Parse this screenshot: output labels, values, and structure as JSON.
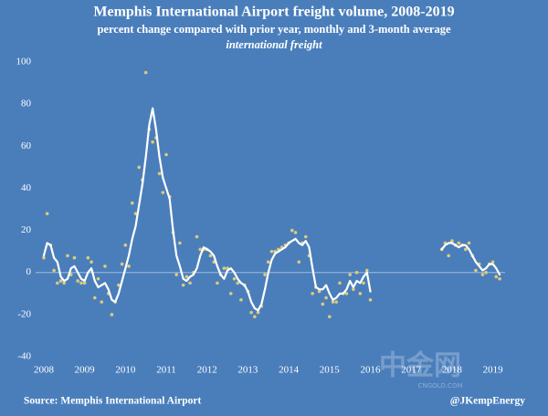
{
  "chart_data": {
    "type": "line",
    "title": "Memphis International Airport freight volume, 2008-2019",
    "subtitle": "percent change compared with prior year, monthly and 3-month average",
    "note": "international freight",
    "source": "Source: Memphis International Airport",
    "credit": "@JKempEnergy",
    "watermark": "中金网",
    "watermark_sub": "CNGOLD.COM",
    "xlim": [
      2007.8,
      2019.3
    ],
    "xticks": [
      2008,
      2009,
      2010,
      2011,
      2012,
      2013,
      2014,
      2015,
      2016,
      2017,
      2018,
      2019
    ],
    "ylim": [
      -40,
      100
    ],
    "yticks": [
      -40,
      -20,
      0,
      20,
      40,
      60,
      80,
      100
    ],
    "zero_line": true,
    "x": [
      2008,
      2008.083,
      2008.167,
      2008.25,
      2008.333,
      2008.417,
      2008.5,
      2008.583,
      2008.667,
      2008.75,
      2008.833,
      2008.917,
      2009,
      2009.083,
      2009.167,
      2009.25,
      2009.333,
      2009.417,
      2009.5,
      2009.583,
      2009.667,
      2009.75,
      2009.833,
      2009.917,
      2010,
      2010.083,
      2010.167,
      2010.25,
      2010.333,
      2010.417,
      2010.5,
      2010.583,
      2010.667,
      2010.75,
      2010.833,
      2010.917,
      2011,
      2011.083,
      2011.167,
      2011.25,
      2011.333,
      2011.417,
      2011.5,
      2011.583,
      2011.667,
      2011.75,
      2011.833,
      2011.917,
      2012,
      2012.083,
      2012.167,
      2012.25,
      2012.333,
      2012.417,
      2012.5,
      2012.583,
      2012.667,
      2012.75,
      2012.833,
      2012.917,
      2013,
      2013.083,
      2013.167,
      2013.25,
      2013.333,
      2013.417,
      2013.5,
      2013.583,
      2013.667,
      2013.75,
      2013.833,
      2013.917,
      2014,
      2014.083,
      2014.167,
      2014.25,
      2014.333,
      2014.417,
      2014.5,
      2014.583,
      2014.667,
      2014.75,
      2014.833,
      2014.917,
      2015,
      2015.083,
      2015.167,
      2015.25,
      2015.333,
      2015.417,
      2015.5,
      2015.583,
      2015.667,
      2015.75,
      2015.833,
      2015.917,
      2016,
      2016.083,
      2016.167,
      2016.25,
      2016.333,
      2016.417,
      2016.5,
      2016.583,
      2016.667,
      2016.75,
      2016.833,
      2016.917,
      2017,
      2017.083,
      2017.167,
      2017.25,
      2017.333,
      2017.417,
      2017.5,
      2017.583,
      2017.667,
      2017.75,
      2017.833,
      2017.917,
      2018,
      2018.083,
      2018.167,
      2018.25,
      2018.333,
      2018.417,
      2018.5,
      2018.583,
      2018.667,
      2018.75,
      2018.833,
      2018.917,
      2019,
      2019.083,
      2019.167
    ],
    "series": [
      {
        "style": "points",
        "color": "#dccb7c",
        "values": [
          7,
          28,
          13,
          1,
          -5,
          -4,
          -5,
          8,
          -1,
          7,
          -4,
          -5,
          -5,
          7,
          5,
          -12,
          -3,
          -14,
          3,
          -10,
          -20,
          -14,
          -6,
          4,
          13,
          3,
          33,
          28,
          50,
          44,
          95,
          68,
          62,
          64,
          47,
          38,
          56,
          36,
          19,
          -1,
          14,
          -6,
          -2,
          -5,
          0,
          17,
          11,
          11,
          11,
          8,
          5,
          -5,
          -1,
          2,
          2,
          -10,
          -3,
          -5,
          -13,
          -6,
          -9,
          -19,
          -21,
          -19,
          -16,
          -1,
          5,
          10,
          10,
          11,
          12,
          13,
          14,
          20,
          19,
          5,
          14,
          17,
          8,
          -10,
          -7,
          -9,
          -15,
          -12,
          -21,
          -14,
          -14,
          -5,
          -10,
          -10,
          -1,
          -8,
          0,
          -10,
          -5,
          1,
          -13,
          null,
          null,
          null,
          null,
          null,
          null,
          null,
          null,
          null,
          null,
          null,
          null,
          null,
          null,
          null,
          null,
          null,
          null,
          null,
          null,
          11,
          14,
          8,
          15,
          13,
          14,
          13,
          11,
          14,
          8,
          1,
          4,
          -1,
          0,
          4,
          5,
          -2,
          -3
        ]
      },
      {
        "style": "line",
        "color": "#ffffff",
        "values": [
          8,
          14,
          13,
          7,
          5,
          -2,
          -4,
          -3,
          2,
          3,
          0,
          -3,
          -4,
          0,
          2,
          -4,
          -7,
          -6,
          -5,
          -8,
          -13,
          -14,
          -10,
          -4,
          2,
          8,
          16,
          22,
          32,
          42,
          55,
          70,
          78,
          68,
          55,
          45,
          40,
          35,
          20,
          8,
          3,
          -3,
          -4,
          -2,
          -1,
          2,
          8,
          12,
          11,
          10,
          8,
          3,
          -1,
          -3,
          1,
          2,
          0,
          -3,
          -5,
          -6,
          -9,
          -14,
          -17,
          -18,
          -15,
          -8,
          0,
          6,
          9,
          10,
          11,
          12,
          14,
          15,
          16,
          14,
          13,
          15,
          12,
          2,
          -7,
          -8,
          -8,
          -6,
          -10,
          -13,
          -12,
          -10,
          -10,
          -8,
          -4,
          -7,
          -4,
          -5,
          -2,
          0,
          -9,
          null,
          null,
          null,
          null,
          null,
          null,
          null,
          null,
          null,
          null,
          null,
          null,
          null,
          null,
          null,
          null,
          null,
          null,
          null,
          null,
          11,
          13,
          14,
          14,
          13,
          12,
          13,
          13,
          11,
          8,
          5,
          3,
          1,
          2,
          4,
          4,
          2,
          -1
        ]
      }
    ]
  }
}
